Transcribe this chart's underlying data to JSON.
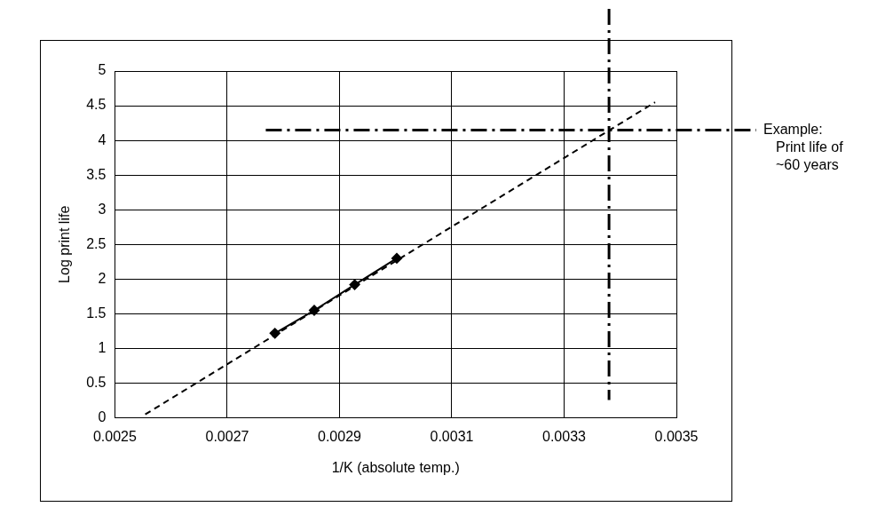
{
  "chart_data": {
    "type": "line",
    "xlabel": "1/K (absolute temp.)",
    "ylabel": "Log print life",
    "xlim": [
      0.0025,
      0.0035
    ],
    "xticks": [
      0.0025,
      0.0027,
      0.0029,
      0.0031,
      0.0033,
      0.0035
    ],
    "ylim": [
      0,
      5
    ],
    "yticks": [
      0,
      0.5,
      1,
      1.5,
      2,
      2.5,
      3,
      3.5,
      4,
      4.5,
      5
    ],
    "grid": true,
    "legend": false,
    "series": [
      {
        "color": "#000000",
        "marker": "diamond",
        "line_style": "solid",
        "x": [
          0.002785,
          0.002855,
          0.002927,
          0.003002
        ],
        "values": [
          1.22,
          1.55,
          1.92,
          2.3
        ]
      },
      {
        "color": "#000000",
        "marker": "none",
        "line_style": "dashed",
        "x": [
          0.002554,
          0.003462
        ],
        "values": [
          0.05,
          4.55
        ]
      }
    ],
    "ref_lines": [
      {
        "axis": "y",
        "value": 4.15,
        "label": "Example:\nPrint life of\n~60 years",
        "color": "#000000",
        "line_style": "dashed"
      },
      {
        "axis": "x",
        "value": 0.00338,
        "label": null,
        "color": "#000000",
        "line_style": "dashed"
      }
    ]
  }
}
